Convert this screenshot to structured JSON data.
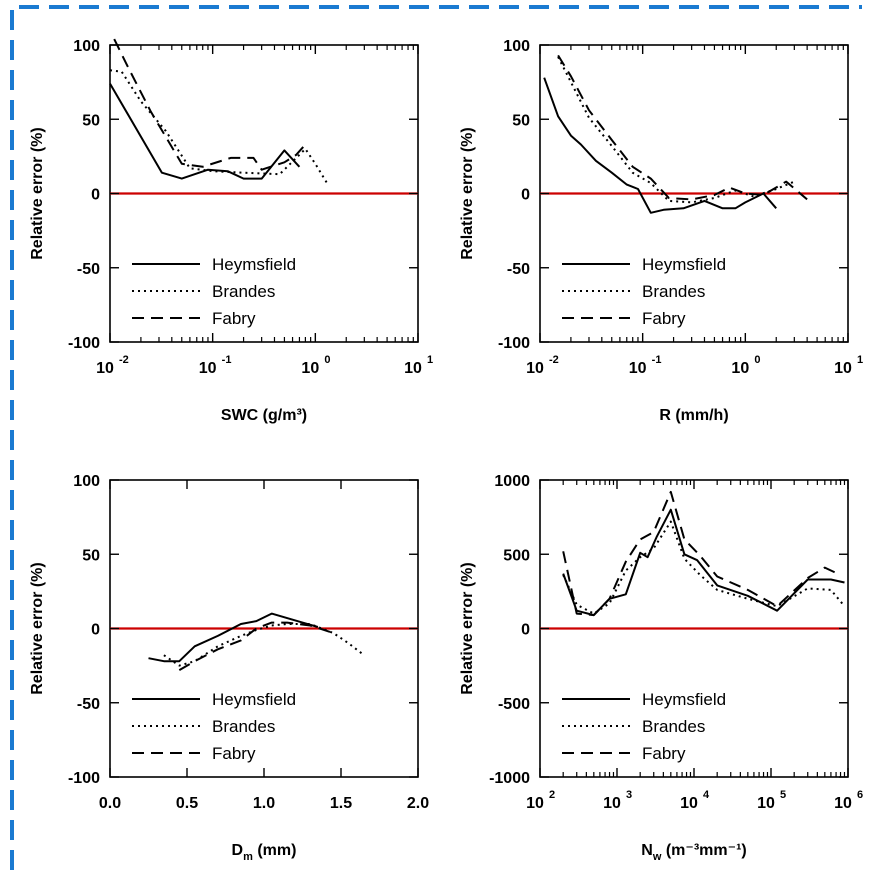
{
  "colors": {
    "border": "#1a7ad1",
    "zero_line": "#cc0000",
    "series": "#000000"
  },
  "chart_data": [
    {
      "type": "line",
      "xscale": "log",
      "xlabel": "SWC (g/m³)",
      "ylabel": "Relative error (%)",
      "xlim": [
        0.01,
        10
      ],
      "ylim": [
        -100,
        100
      ],
      "xticks": [
        {
          "v": 0.01,
          "base": "10",
          "exp": "-2"
        },
        {
          "v": 0.1,
          "base": "10",
          "exp": "-1"
        },
        {
          "v": 1,
          "base": "10",
          "exp": "0"
        },
        {
          "v": 10,
          "base": "10",
          "exp": "1"
        }
      ],
      "yticks": [
        {
          "v": 100,
          "label": "100"
        },
        {
          "v": 50,
          "label": "50"
        },
        {
          "v": 0,
          "label": "0"
        },
        {
          "v": -50,
          "label": "-50"
        },
        {
          "v": -100,
          "label": "-100"
        }
      ],
      "hline": 0,
      "legend": {
        "position": "bottom-left",
        "entries": [
          "Heymsfield",
          "Brandes",
          "Fabry"
        ]
      },
      "series": [
        {
          "name": "Heymsfield",
          "style": "solid",
          "x": [
            0.01,
            0.032,
            0.05,
            0.09,
            0.14,
            0.2,
            0.3,
            0.5,
            0.7
          ],
          "y": [
            74,
            14,
            10,
            16,
            15,
            10,
            10,
            29,
            18
          ]
        },
        {
          "name": "Brandes",
          "style": "dotted",
          "x": [
            0.01,
            0.013,
            0.02,
            0.035,
            0.06,
            0.1,
            0.2,
            0.45,
            0.8,
            1.0,
            1.3
          ],
          "y": [
            83,
            82,
            62,
            42,
            17,
            15,
            14,
            13,
            30,
            20,
            7
          ]
        },
        {
          "name": "Fabry",
          "style": "dashed",
          "x": [
            0.011,
            0.015,
            0.025,
            0.05,
            0.08,
            0.15,
            0.25,
            0.3,
            0.5,
            0.65,
            0.8
          ],
          "y": [
            104,
            85,
            55,
            20,
            18,
            24,
            24,
            16,
            21,
            26,
            33
          ]
        }
      ]
    },
    {
      "type": "line",
      "xscale": "log",
      "xlabel": "R (mm/h)",
      "ylabel": "Relative error (%)",
      "xlim": [
        0.01,
        10
      ],
      "ylim": [
        -100,
        100
      ],
      "xticks": [
        {
          "v": 0.01,
          "base": "10",
          "exp": "-2"
        },
        {
          "v": 0.1,
          "base": "10",
          "exp": "-1"
        },
        {
          "v": 1,
          "base": "10",
          "exp": "0"
        },
        {
          "v": 10,
          "base": "10",
          "exp": "1"
        }
      ],
      "yticks": [
        {
          "v": 100,
          "label": "100"
        },
        {
          "v": 50,
          "label": "50"
        },
        {
          "v": 0,
          "label": "0"
        },
        {
          "v": -50,
          "label": "-50"
        },
        {
          "v": -100,
          "label": "-100"
        }
      ],
      "hline": 0,
      "legend": {
        "position": "bottom-left",
        "entries": [
          "Heymsfield",
          "Brandes",
          "Fabry"
        ]
      },
      "series": [
        {
          "name": "Heymsfield",
          "style": "solid",
          "x": [
            0.011,
            0.015,
            0.02,
            0.025,
            0.035,
            0.05,
            0.07,
            0.09,
            0.12,
            0.16,
            0.25,
            0.4,
            0.6,
            0.8,
            1.0,
            1.5,
            2.0
          ],
          "y": [
            78,
            52,
            39,
            33,
            22,
            14,
            6,
            3,
            -13,
            -11,
            -10,
            -5,
            -10,
            -10,
            -6,
            0,
            -10
          ]
        },
        {
          "name": "Brandes",
          "style": "dotted",
          "x": [
            0.015,
            0.02,
            0.03,
            0.05,
            0.08,
            0.12,
            0.18,
            0.3,
            0.5,
            0.8,
            1.2,
            2.0,
            3.0
          ],
          "y": [
            92,
            75,
            51,
            32,
            14,
            7,
            -5,
            -6,
            -3,
            2,
            -2,
            3,
            8
          ]
        },
        {
          "name": "Fabry",
          "style": "dashed",
          "x": [
            0.015,
            0.02,
            0.03,
            0.05,
            0.08,
            0.12,
            0.18,
            0.3,
            0.5,
            0.7,
            1.0,
            1.5,
            2.5,
            4.0
          ],
          "y": [
            93,
            79,
            56,
            36,
            18,
            10,
            -3,
            -4,
            -1,
            4,
            0,
            -1,
            8,
            -4
          ]
        }
      ]
    },
    {
      "type": "line",
      "xscale": "linear",
      "xlabel": "Dm (mm)",
      "ylabel": "Relative error (%)",
      "xlim": [
        0,
        2
      ],
      "ylim": [
        -100,
        100
      ],
      "xticks": [
        {
          "v": 0,
          "label": "0.0"
        },
        {
          "v": 0.5,
          "label": "0.5"
        },
        {
          "v": 1,
          "label": "1.0"
        },
        {
          "v": 1.5,
          "label": "1.5"
        },
        {
          "v": 2,
          "label": "2.0"
        }
      ],
      "yticks": [
        {
          "v": 100,
          "label": "100"
        },
        {
          "v": 50,
          "label": "50"
        },
        {
          "v": 0,
          "label": "0"
        },
        {
          "v": -50,
          "label": "-50"
        },
        {
          "v": -100,
          "label": "-100"
        }
      ],
      "hline": 0,
      "legend": {
        "position": "bottom-left",
        "entries": [
          "Heymsfield",
          "Brandes",
          "Fabry"
        ]
      },
      "series": [
        {
          "name": "Heymsfield",
          "style": "solid",
          "x": [
            0.25,
            0.35,
            0.45,
            0.55,
            0.7,
            0.85,
            0.95,
            1.05,
            1.15,
            1.25,
            1.35
          ],
          "y": [
            -20,
            -22,
            -22,
            -12,
            -5,
            3,
            5,
            10,
            7,
            4,
            1
          ]
        },
        {
          "name": "Brandes",
          "style": "dotted",
          "x": [
            0.35,
            0.45,
            0.55,
            0.7,
            0.85,
            0.95,
            1.05,
            1.15,
            1.3,
            1.45,
            1.55,
            1.65
          ],
          "y": [
            -18,
            -25,
            -22,
            -12,
            -5,
            -1,
            2,
            3,
            3,
            -3,
            -10,
            -18
          ]
        },
        {
          "name": "Fabry",
          "style": "dashed",
          "x": [
            0.45,
            0.55,
            0.7,
            0.85,
            0.95,
            1.05,
            1.15,
            1.3,
            1.45
          ],
          "y": [
            -28,
            -22,
            -14,
            -8,
            0,
            4,
            4,
            2,
            -3
          ]
        }
      ]
    },
    {
      "type": "line",
      "xscale": "log",
      "xlabel": "Nw (m⁻³mm⁻¹)",
      "ylabel": "Relative error (%)",
      "xlim": [
        100,
        1000000
      ],
      "ylim": [
        -1000,
        1000
      ],
      "xticks": [
        {
          "v": 100,
          "base": "10",
          "exp": "2"
        },
        {
          "v": 1000,
          "base": "10",
          "exp": "3"
        },
        {
          "v": 10000,
          "base": "10",
          "exp": "4"
        },
        {
          "v": 100000,
          "base": "10",
          "exp": "5"
        },
        {
          "v": 1000000,
          "base": "10",
          "exp": "6"
        }
      ],
      "yticks": [
        {
          "v": 1000,
          "label": "1000"
        },
        {
          "v": 500,
          "label": "500"
        },
        {
          "v": 0,
          "label": "0"
        },
        {
          "v": -500,
          "label": "-500"
        },
        {
          "v": -1000,
          "label": "-1000"
        }
      ],
      "hline": 0,
      "legend": {
        "position": "bottom-left",
        "entries": [
          "Heymsfield",
          "Brandes",
          "Fabry"
        ]
      },
      "series": [
        {
          "name": "Heymsfield",
          "style": "solid",
          "x": [
            200,
            300,
            500,
            800,
            1300,
            2000,
            2500,
            3300,
            5000,
            7500,
            11000,
            20000,
            50000,
            120000,
            300000,
            600000,
            900000
          ],
          "y": [
            370,
            120,
            90,
            200,
            230,
            510,
            480,
            620,
            800,
            500,
            460,
            290,
            220,
            120,
            330,
            330,
            310
          ]
        },
        {
          "name": "Brandes",
          "style": "dotted",
          "x": [
            200,
            300,
            500,
            800,
            1300,
            2000,
            3000,
            5000,
            7500,
            12000,
            20000,
            50000,
            120000,
            300000,
            600000,
            900000
          ],
          "y": [
            360,
            160,
            100,
            170,
            390,
            480,
            540,
            720,
            470,
            360,
            260,
            200,
            150,
            270,
            260,
            150
          ]
        },
        {
          "name": "Fabry",
          "style": "dashed",
          "x": [
            200,
            300,
            500,
            800,
            1300,
            2000,
            3000,
            5000,
            7500,
            12000,
            20000,
            50000,
            120000,
            300000,
            500000,
            800000
          ],
          "y": [
            520,
            100,
            90,
            200,
            450,
            600,
            650,
            920,
            600,
            490,
            350,
            260,
            150,
            340,
            410,
            360
          ]
        }
      ]
    }
  ]
}
